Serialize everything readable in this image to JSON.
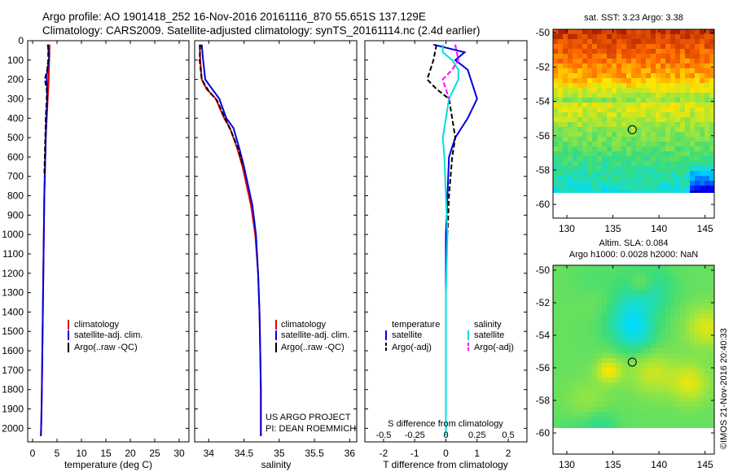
{
  "header": {
    "line1": "Argo profile: AO 1901418_252 16-Nov-2016 20161116_870 55.651S 137.129E",
    "line2": "Climatology: CARS2009. Satellite-adjusted climatology: synTS_20161114.nc (2.4d earlier)"
  },
  "credit": "©IMOS 21-Nov-2016 20:40:33",
  "colors": {
    "climatology": "#e00000",
    "satellite": "#0000e0",
    "argo": "#000000",
    "satellite_s": "#00e0e0",
    "argo_s": "#ff00ff"
  },
  "chart_data": [
    {
      "type": "line",
      "xlabel": "temperature (deg C)",
      "ylabel": "",
      "xlim": [
        -1,
        32
      ],
      "ylim": [
        2070,
        0
      ],
      "xticks": [
        0,
        5,
        10,
        15,
        20,
        25,
        30
      ],
      "yticks": [
        0,
        100,
        200,
        300,
        400,
        500,
        600,
        700,
        800,
        900,
        1000,
        1100,
        1200,
        1300,
        1400,
        1500,
        1600,
        1700,
        1800,
        1900,
        2000
      ],
      "legend": [
        "climatology",
        "satellite-adj. clim.",
        "Argo(..raw -QC)"
      ],
      "legend_position": "lower-right",
      "series": [
        {
          "name": "climatology",
          "style": "solid",
          "color": "#e00000",
          "x": [
            3.5,
            3.4,
            3.3,
            3.1,
            2.9,
            2.7,
            2.6,
            2.5,
            2.4,
            2.3,
            2.2,
            2.1,
            2.0,
            1.9,
            1.8,
            1.7
          ],
          "y": [
            20,
            100,
            200,
            300,
            400,
            500,
            600,
            700,
            800,
            1000,
            1200,
            1400,
            1600,
            1800,
            1950,
            2040
          ]
        },
        {
          "name": "satellite-adj. clim.",
          "style": "solid",
          "color": "#0000e0",
          "x": [
            3.1,
            3.4,
            2.9,
            3.0,
            2.8,
            2.7,
            2.6,
            2.5,
            2.4,
            2.3,
            2.2,
            2.1,
            2.0,
            1.9,
            1.8,
            1.7
          ],
          "y": [
            20,
            80,
            180,
            300,
            400,
            500,
            600,
            700,
            800,
            1000,
            1200,
            1400,
            1600,
            1800,
            1950,
            2040
          ]
        },
        {
          "name": "Argo(..raw -QC)",
          "style": "dashed",
          "color": "#000000",
          "x": [
            3.2,
            3.2,
            3.0,
            2.5,
            2.9,
            2.9,
            2.7,
            2.6,
            2.5,
            2.4
          ],
          "y": [
            20,
            100,
            150,
            200,
            250,
            300,
            400,
            500,
            600,
            700
          ]
        }
      ]
    },
    {
      "type": "line",
      "xlabel": "salinity",
      "ylabel": "",
      "xlim": [
        33.8,
        36.1
      ],
      "ylim": [
        2070,
        0
      ],
      "xticks": [
        34,
        34.5,
        35,
        35.5,
        36
      ],
      "legend": [
        "climatology",
        "satellite-adj. clim.",
        "Argo(..raw -QC)"
      ],
      "legend_position": "lower-right",
      "annotation": [
        "US ARGO PROJECT",
        "PI: DEAN ROEMMICH"
      ],
      "series": [
        {
          "name": "climatology",
          "style": "solid",
          "color": "#e00000",
          "x": [
            33.87,
            33.88,
            33.9,
            33.97,
            34.1,
            34.22,
            34.3,
            34.4,
            34.48,
            34.54,
            34.6,
            34.66,
            34.7,
            34.72,
            34.73,
            34.74,
            34.74,
            34.74
          ],
          "y": [
            20,
            100,
            200,
            250,
            300,
            400,
            450,
            550,
            650,
            750,
            850,
            1000,
            1200,
            1400,
            1600,
            1800,
            1950,
            2040
          ]
        },
        {
          "name": "satellite-adj. clim.",
          "style": "solid",
          "color": "#0000e0",
          "x": [
            33.9,
            33.92,
            33.95,
            34.05,
            34.15,
            34.25,
            34.35,
            34.43,
            34.5,
            34.56,
            34.62,
            34.67,
            34.7,
            34.72,
            34.73,
            34.74,
            34.74,
            34.74
          ],
          "y": [
            20,
            100,
            200,
            250,
            300,
            400,
            450,
            550,
            650,
            750,
            850,
            1000,
            1200,
            1400,
            1600,
            1800,
            1950,
            2040
          ]
        },
        {
          "name": "Argo(..raw -QC)",
          "style": "dashed",
          "color": "#000000",
          "x": [
            33.88,
            33.87,
            33.9,
            34.0,
            34.12,
            34.23,
            34.32,
            34.42,
            34.49
          ],
          "y": [
            20,
            100,
            200,
            260,
            310,
            400,
            470,
            560,
            650
          ]
        }
      ]
    },
    {
      "type": "line",
      "xlabel": "T difference from climatology",
      "xlabel_top": "S difference from climatology",
      "ylabel": "",
      "xlim": [
        -2.6,
        2.6
      ],
      "ylim": [
        2070,
        0
      ],
      "xticks": [
        -2,
        -1,
        0,
        1,
        2
      ],
      "xticks_s": [
        -0.5,
        -0.25,
        0,
        0.25,
        0.5
      ],
      "legend": {
        "temperature": {
          "title": "temperature",
          "items": [
            "satellite",
            "Argo(-adj)"
          ]
        },
        "salinity": {
          "title": "salinity",
          "items": [
            "satellite",
            "Argo(-adj)"
          ]
        }
      },
      "series": [
        {
          "name": "satellite",
          "group": "temperature",
          "style": "solid",
          "color": "#0000e0",
          "x": [
            -0.4,
            0.6,
            0.3,
            0.7,
            0.8,
            1.0,
            0.7,
            0.3,
            0.1,
            0.05,
            0.0,
            0.0,
            0.0,
            0.0,
            0.0
          ],
          "y": [
            20,
            60,
            100,
            150,
            200,
            300,
            400,
            500,
            600,
            800,
            1000,
            1300,
            1600,
            1800,
            2040
          ]
        },
        {
          "name": "Argo(-adj)",
          "group": "temperature",
          "style": "dashed",
          "color": "#000000",
          "x": [
            -0.3,
            -0.4,
            -0.5,
            -0.6,
            -0.3,
            0.1,
            0.2,
            0.3,
            0.2,
            0.1,
            0.05
          ],
          "y": [
            20,
            100,
            150,
            200,
            250,
            300,
            400,
            500,
            600,
            800,
            1000
          ]
        },
        {
          "name": "satellite",
          "group": "salinity",
          "style": "solid",
          "color": "#00e0e0",
          "x": [
            -0.1,
            -0.1,
            0.2,
            0.4,
            0.4,
            0.1,
            0.0,
            -0.1,
            -0.05,
            0.0,
            0.05,
            0.0,
            0.0,
            0.0,
            0.0
          ],
          "y": [
            20,
            60,
            100,
            150,
            200,
            300,
            400,
            500,
            600,
            800,
            1000,
            1300,
            1600,
            1800,
            2040
          ]
        },
        {
          "name": "Argo(-adj)",
          "group": "salinity",
          "style": "dashed",
          "color": "#ff00ff",
          "x": [
            0.3,
            0.4,
            0.2,
            -0.1,
            0.0,
            0.1
          ],
          "y": [
            20,
            100,
            150,
            200,
            250,
            300
          ]
        }
      ]
    },
    {
      "type": "heatmap",
      "title": "sat. SST: 3.23  Argo: 3.38",
      "xlim": [
        128.5,
        146
      ],
      "ylim": [
        -60.8,
        -49.8
      ],
      "xticks": [
        130,
        135,
        140,
        145
      ],
      "yticks": [
        -50,
        -52,
        -54,
        -56,
        -58,
        -60
      ],
      "marker": {
        "lon": 137.1,
        "lat": -55.65
      }
    },
    {
      "type": "heatmap",
      "title": [
        "Altim. SLA: 0.084",
        "Argo h1000: 0.0028 h2000: NaN"
      ],
      "xlim": [
        128.5,
        146
      ],
      "ylim": [
        -61.3,
        -49.7
      ],
      "xticks": [
        130,
        135,
        140,
        145
      ],
      "yticks": [
        -50,
        -52,
        -54,
        -56,
        -58,
        -60
      ],
      "marker": {
        "lon": 137.1,
        "lat": -55.65
      }
    }
  ]
}
